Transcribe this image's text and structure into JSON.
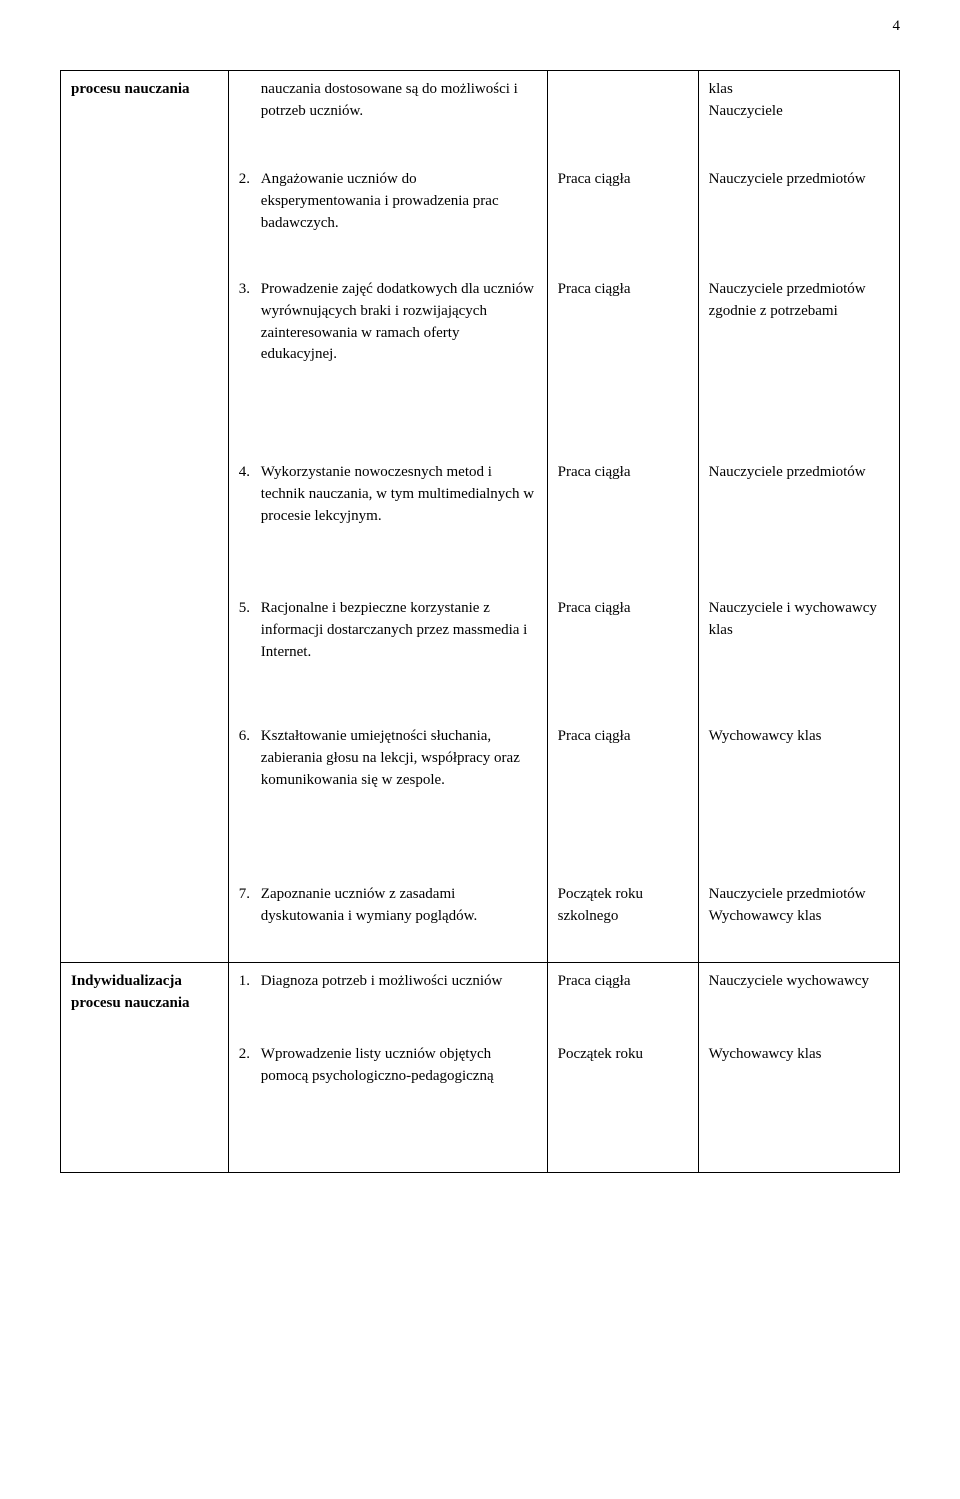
{
  "page_number": "4",
  "row1": {
    "col1": "procesu nauczania",
    "col2_items": [
      {
        "num": "",
        "text": "nauczania dostosowane są do możliwości i potrzeb uczniów.",
        "plain": true
      },
      {
        "num": "2.",
        "text": "Angażowanie uczniów do eksperymentowania i prowadzenia prac badawczych."
      },
      {
        "num": "3.",
        "text": "Prowadzenie zajęć dodatkowych dla uczniów wyrównujących braki i rozwijających zainteresowania w ramach oferty edukacyjnej."
      },
      {
        "num": "4.",
        "text": "Wykorzystanie nowoczesnych metod i technik nauczania, w tym multimedialnych w procesie lekcyjnym."
      },
      {
        "num": "5.",
        "text": "Racjonalne i bezpieczne korzystanie z informacji dostarczanych przez massmedia i Internet."
      },
      {
        "num": "6.",
        "text": "Kształtowanie umiejętności słuchania, zabierania głosu na lekcji, współpracy oraz komunikowania się w zespole."
      },
      {
        "num": "7.",
        "text": "Zapoznanie uczniów z zasadami dyskutowania i wymiany poglądów."
      }
    ],
    "col3_items": [
      "",
      "Praca ciągła",
      "Praca ciągła",
      "Praca ciągła",
      "Praca ciągła",
      "Praca ciągła",
      "Początek roku szkolnego"
    ],
    "col4_items": [
      "klas\nNauczyciele",
      "Nauczyciele przedmiotów",
      "Nauczyciele przedmiotów zgodnie z potrzebami",
      "Nauczyciele przedmiotów",
      "Nauczyciele i wychowawcy klas",
      "Wychowawcy klas",
      "Nauczyciele przedmiotów Wychowawcy klas"
    ]
  },
  "row2": {
    "col1": "Indywidualizacja procesu nauczania",
    "col2_items": [
      {
        "num": "1.",
        "text": "Diagnoza potrzeb i możliwości uczniów"
      },
      {
        "num": "2.",
        "text": "Wprowadzenie listy uczniów objętych pomocą psychologiczno-pedagogiczną"
      }
    ],
    "col3_items": [
      "Praca ciągła",
      "Początek roku"
    ],
    "col4_items": [
      "Nauczyciele wychowawcy",
      "Wychowawcy klas"
    ]
  }
}
